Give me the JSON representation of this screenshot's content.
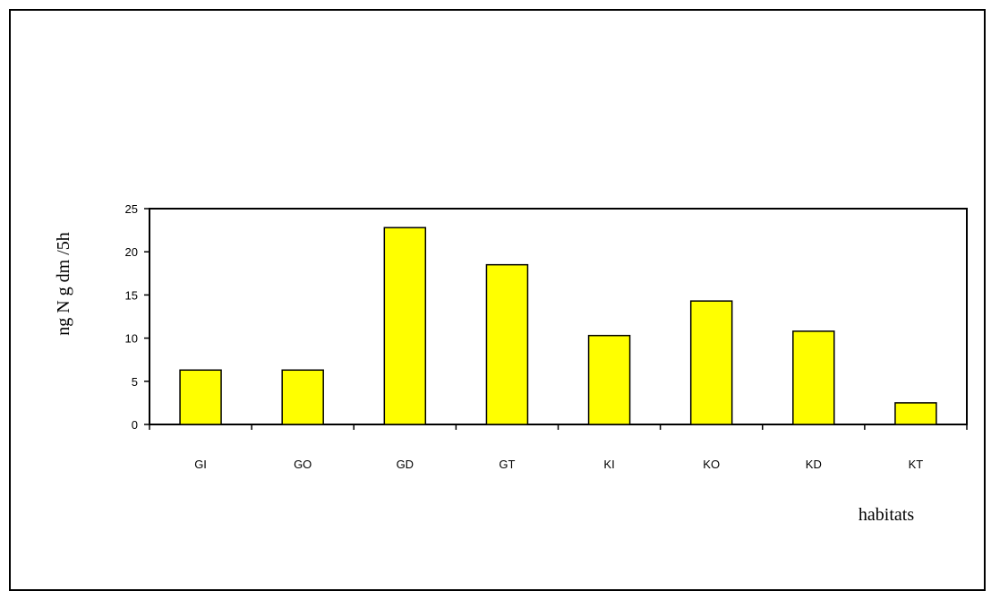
{
  "chart_data": {
    "type": "bar",
    "title": "",
    "categories": [
      "GI",
      "GO",
      "GD",
      "GT",
      "KI",
      "KO",
      "KD",
      "KT"
    ],
    "values": [
      6.3,
      6.3,
      22.8,
      18.5,
      10.3,
      14.3,
      10.8,
      2.5
    ],
    "xlabel": "habitats",
    "ylabel": "ng N g dm /5h",
    "ylim": [
      0,
      25
    ],
    "yticks": [
      0,
      5,
      10,
      15,
      20,
      25
    ],
    "grid": false,
    "legend": "none",
    "bar_color": "#ffff00",
    "bar_edge_color": "#000000"
  }
}
